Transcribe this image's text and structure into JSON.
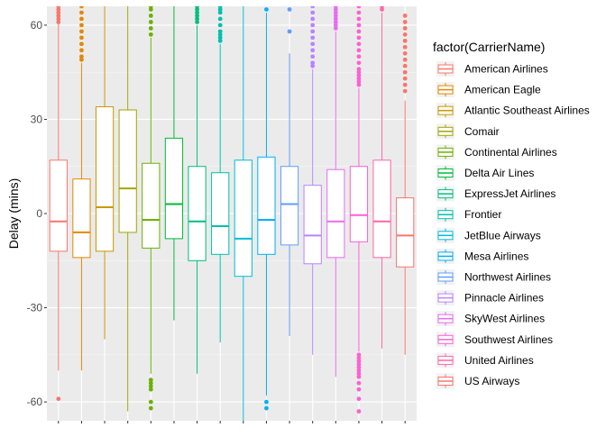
{
  "chart_data": {
    "type": "boxplot",
    "title": "",
    "xlabel": "",
    "ylabel": "Delay (mins)",
    "ylim": [
      -66,
      66
    ],
    "yticks": [
      -60,
      -30,
      0,
      30,
      60
    ],
    "ytick_labels": [
      "-60",
      "-30",
      "0",
      "30",
      "60"
    ],
    "grid": true,
    "legend": {
      "title": "factor(CarrierName)",
      "placement": "right"
    },
    "series": [
      {
        "name": "American Airlines",
        "color": "#F8766D",
        "q1": -12,
        "median": -2.5,
        "q3": 17,
        "whisker_low": -50,
        "whisker_high": 66,
        "outliers_low": [
          -59
        ],
        "outliers_high": [
          61,
          62,
          63,
          64,
          65,
          66
        ]
      },
      {
        "name": "American Eagle",
        "color": "#E58700",
        "q1": -14,
        "median": -6,
        "q3": 11,
        "whisker_low": -50,
        "whisker_high": 48,
        "outliers_low": [],
        "outliers_high": [
          49,
          50,
          52,
          54,
          56,
          58,
          60,
          62,
          64,
          66
        ]
      },
      {
        "name": "Atlantic Southeast Airlines",
        "color": "#C99800",
        "q1": -12,
        "median": 2,
        "q3": 34,
        "whisker_low": -40,
        "whisker_high": 66,
        "outliers_low": [],
        "outliers_high": []
      },
      {
        "name": "Comair",
        "color": "#A3A500",
        "q1": -6,
        "median": 8,
        "q3": 33,
        "whisker_low": -63,
        "whisker_high": 66,
        "outliers_low": [],
        "outliers_high": []
      },
      {
        "name": "Continental Airlines",
        "color": "#6BB100",
        "q1": -11,
        "median": -2,
        "q3": 16,
        "whisker_low": -51,
        "whisker_high": 56,
        "outliers_low": [
          -53,
          -54,
          -55,
          -56,
          -60,
          -62
        ],
        "outliers_high": [
          57,
          59,
          61,
          63,
          65,
          66
        ]
      },
      {
        "name": "Delta Air Lines",
        "color": "#00BA38",
        "q1": -8,
        "median": 3,
        "q3": 24,
        "whisker_low": -34,
        "whisker_high": 66,
        "outliers_low": [],
        "outliers_high": []
      },
      {
        "name": "ExpressJet Airlines",
        "color": "#00BF7D",
        "q1": -15,
        "median": -2.5,
        "q3": 15,
        "whisker_low": -51,
        "whisker_high": 60,
        "outliers_low": [],
        "outliers_high": [
          61,
          62,
          63,
          64,
          65,
          66
        ]
      },
      {
        "name": "Frontier",
        "color": "#00C0AF",
        "q1": -13,
        "median": -4,
        "q3": 13,
        "whisker_low": -41,
        "whisker_high": 54,
        "outliers_low": [],
        "outliers_high": [
          55,
          56,
          57,
          58,
          60,
          62,
          64,
          65,
          66
        ]
      },
      {
        "name": "JetBlue Airways",
        "color": "#00BCD8",
        "q1": -20,
        "median": -8,
        "q3": 17,
        "whisker_low": -66,
        "whisker_high": 66,
        "outliers_low": [],
        "outliers_high": []
      },
      {
        "name": "Mesa Airlines",
        "color": "#00B0F6",
        "q1": -13,
        "median": -2,
        "q3": 18,
        "whisker_low": -58,
        "whisker_high": 64,
        "outliers_low": [
          -60,
          -62
        ],
        "outliers_high": [
          65
        ]
      },
      {
        "name": "Northwest Airlines",
        "color": "#619CFF",
        "q1": -10,
        "median": 3,
        "q3": 15,
        "whisker_low": -39,
        "whisker_high": 51,
        "outliers_low": [],
        "outliers_high": [
          58,
          65
        ]
      },
      {
        "name": "Pinnacle Airlines",
        "color": "#B983FF",
        "q1": -16,
        "median": -7,
        "q3": 9,
        "whisker_low": -45,
        "whisker_high": 46,
        "outliers_low": [],
        "outliers_high": [
          47,
          48,
          50,
          52,
          54,
          56,
          58,
          60,
          62,
          64,
          66
        ]
      },
      {
        "name": "SkyWest Airlines",
        "color": "#E76BF3",
        "q1": -14,
        "median": -2.5,
        "q3": 14,
        "whisker_low": -52,
        "whisker_high": 58,
        "outliers_low": [],
        "outliers_high": [
          59,
          60,
          61,
          62,
          63,
          64,
          65,
          66
        ]
      },
      {
        "name": "Southwest Airlines",
        "color": "#FD61D1",
        "q1": -9,
        "median": -0.5,
        "q3": 15,
        "whisker_low": -44,
        "whisker_high": 40,
        "outliers_low": [
          -45,
          -46,
          -47,
          -48,
          -49,
          -50,
          -51,
          -52,
          -54,
          -56,
          -59,
          -63
        ],
        "outliers_high": [
          41,
          42,
          43,
          44,
          45,
          46,
          48,
          50,
          52,
          54,
          56,
          58,
          60,
          62,
          64,
          66
        ]
      },
      {
        "name": "United Airlines",
        "color": "#FF67A4",
        "q1": -14,
        "median": -2.5,
        "q3": 17,
        "whisker_low": -43,
        "whisker_high": 64,
        "outliers_low": [],
        "outliers_high": [
          65,
          66
        ]
      },
      {
        "name": "US Airways",
        "color": "#F8766D",
        "q1": -17,
        "median": -7,
        "q3": 5,
        "whisker_low": -45,
        "whisker_high": 36,
        "outliers_low": [],
        "outliers_high": [
          39,
          41,
          43,
          45,
          47,
          49,
          51,
          53,
          55,
          57,
          59,
          61,
          63
        ]
      }
    ]
  }
}
